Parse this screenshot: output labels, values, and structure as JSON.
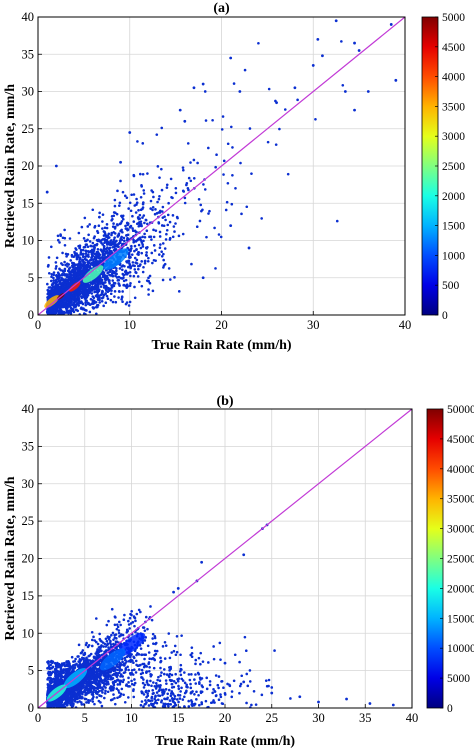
{
  "chart_data": [
    {
      "type": "scatter",
      "title": "(a)",
      "xlabel": "True Rain Rate (mm/h)",
      "ylabel": "Retrieved Rain Rate, mm/h",
      "xlim": [
        0,
        40
      ],
      "ylim": [
        0,
        40
      ],
      "xticks": [
        0,
        10,
        20,
        30,
        40
      ],
      "yticks": [
        0,
        5,
        10,
        15,
        20,
        25,
        30,
        35,
        40
      ],
      "grid": true,
      "point_color": "#0b2fd1",
      "reference_line": {
        "name": "1:1",
        "color": "#c23bd6",
        "x": [
          0,
          40
        ],
        "y": [
          0,
          40
        ]
      },
      "density_core": [
        {
          "x": 2.5,
          "y": 2.5,
          "level": 1.0
        },
        {
          "x": 4,
          "y": 3.8,
          "level": 0.85
        },
        {
          "x": 1.5,
          "y": 1.8,
          "level": 0.7
        },
        {
          "x": 6,
          "y": 5.5,
          "level": 0.45
        },
        {
          "x": 8.5,
          "y": 7.5,
          "level": 0.25
        }
      ],
      "outliers": [
        {
          "x": 32.5,
          "y": 39.5
        },
        {
          "x": 38.5,
          "y": 39.0
        },
        {
          "x": 34.5,
          "y": 36.5
        },
        {
          "x": 35,
          "y": 35.5
        },
        {
          "x": 30.5,
          "y": 37.0
        },
        {
          "x": 39,
          "y": 31.5
        },
        {
          "x": 33.5,
          "y": 30.0
        },
        {
          "x": 36,
          "y": 30.0
        },
        {
          "x": 30,
          "y": 33.5
        },
        {
          "x": 31,
          "y": 34.8
        },
        {
          "x": 34.5,
          "y": 27.5
        },
        {
          "x": 21,
          "y": 34.5
        },
        {
          "x": 18,
          "y": 31.0
        },
        {
          "x": 17,
          "y": 30.5
        },
        {
          "x": 22,
          "y": 30.0
        },
        {
          "x": 28,
          "y": 30.5
        },
        {
          "x": 15.5,
          "y": 27.5
        },
        {
          "x": 26,
          "y": 28.5
        },
        {
          "x": 10,
          "y": 24.5
        },
        {
          "x": 9,
          "y": 20.5
        },
        {
          "x": 2,
          "y": 20.0
        },
        {
          "x": 1,
          "y": 16.5
        },
        {
          "x": 18,
          "y": 5.0
        },
        {
          "x": 23,
          "y": 9.0
        },
        {
          "x": 21,
          "y": 12.0
        },
        {
          "x": 16,
          "y": 26.0
        }
      ],
      "colorbar": {
        "min": 0,
        "max": 5000,
        "ticks": [
          0,
          500,
          1000,
          1500,
          2000,
          2500,
          3000,
          3500,
          4000,
          4500,
          5000
        ],
        "colormap": "jet"
      }
    },
    {
      "type": "scatter",
      "title": "(b)",
      "xlabel": "True Rain Rate (mm/h)",
      "ylabel": "Retrieved Rain Rate, mm/h",
      "xlim": [
        0,
        40
      ],
      "ylim": [
        0,
        40
      ],
      "xticks": [
        0,
        5,
        10,
        15,
        20,
        25,
        30,
        35,
        40
      ],
      "yticks": [
        0,
        5,
        10,
        15,
        20,
        25,
        30,
        35,
        40
      ],
      "grid": true,
      "point_color": "#0b2fd1",
      "reference_line": {
        "name": "1:1",
        "color": "#c23bd6",
        "x": [
          0,
          40
        ],
        "y": [
          0,
          40
        ]
      },
      "density_core": [
        {
          "x": 2,
          "y": 2,
          "level": 0.55
        },
        {
          "x": 4,
          "y": 4,
          "level": 0.4
        },
        {
          "x": 8,
          "y": 6.5,
          "level": 0.3
        },
        {
          "x": 10,
          "y": 8.5,
          "level": 0.22
        }
      ],
      "outliers": [
        {
          "x": 24.5,
          "y": 24.5
        },
        {
          "x": 24,
          "y": 24.0
        },
        {
          "x": 22,
          "y": 20.5
        },
        {
          "x": 17.5,
          "y": 19.5
        },
        {
          "x": 17,
          "y": 17.0
        },
        {
          "x": 15,
          "y": 16.0
        },
        {
          "x": 14.5,
          "y": 15.5
        },
        {
          "x": 20,
          "y": 6.0
        },
        {
          "x": 25,
          "y": 2.0
        },
        {
          "x": 30,
          "y": 0.8
        },
        {
          "x": 33,
          "y": 1.2
        },
        {
          "x": 38,
          "y": 0.4
        },
        {
          "x": 28,
          "y": 1.5
        },
        {
          "x": 35.5,
          "y": 0.6
        },
        {
          "x": 22,
          "y": 3.5
        }
      ],
      "colorbar": {
        "min": 0,
        "max": 50000,
        "ticks": [
          0,
          5000,
          10000,
          15000,
          20000,
          25000,
          30000,
          35000,
          40000,
          45000,
          50000
        ],
        "colormap": "jet"
      }
    }
  ]
}
